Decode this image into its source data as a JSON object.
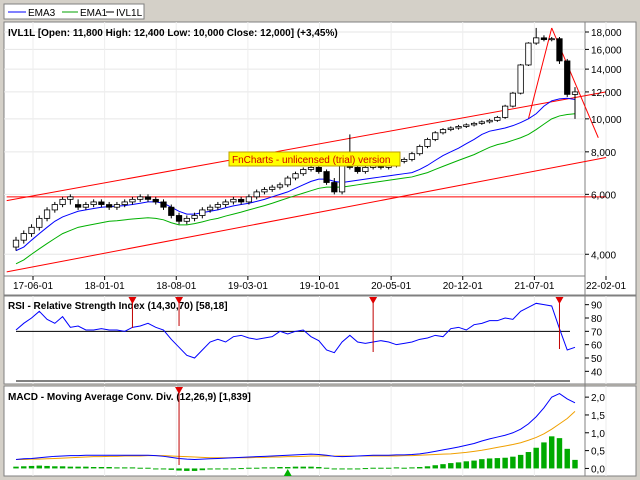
{
  "legend": [
    {
      "label": "EMA3",
      "color": "#0000ff"
    },
    {
      "label": "EMA1",
      "color": "#00a000"
    },
    {
      "label": "IVL1L",
      "color": "#000000"
    }
  ],
  "trial_note": "FnCharts - unlicensed (trial) version",
  "colors": {
    "ema3": "#0000ff",
    "ema1": "#00b000",
    "trend": "#ff0000",
    "bar_up": "#ffffff",
    "bar_down": "#000000",
    "macd_signal": "#f0a000",
    "histogram": "#00aa00",
    "note_bg": "#ffff00"
  },
  "chart_data": [
    {
      "type": "candlestick",
      "title": "IVL1L [Open: 11,800  High: 12,400  Low: 10,000  Close: 12,000] (+3,45%)",
      "y_scale": "log",
      "ylim": [
        3500,
        19000
      ],
      "y_ticks": [
        {
          "v": 4000,
          "label": "4,000"
        },
        {
          "v": 6000,
          "label": "6,000"
        },
        {
          "v": 8000,
          "label": "8,000"
        },
        {
          "v": 10000,
          "label": "10,000"
        },
        {
          "v": 12000,
          "label": "12,000"
        },
        {
          "v": 14000,
          "label": "14,000"
        },
        {
          "v": 16000,
          "label": "16,000"
        },
        {
          "v": 18000,
          "label": "18,000"
        }
      ],
      "x_tick_labels": [
        "17-06-01",
        "18-01-01",
        "18-08-01",
        "19-03-01",
        "19-10-01",
        "20-05-01",
        "20-12-01",
        "21-07-01",
        "22-02-01"
      ],
      "candles": [
        [
          4200,
          4500,
          4100,
          4400
        ],
        [
          4400,
          4700,
          4300,
          4600
        ],
        [
          4600,
          4900,
          4500,
          4800
        ],
        [
          4800,
          5200,
          4700,
          5100
        ],
        [
          5100,
          5500,
          5000,
          5400
        ],
        [
          5400,
          5700,
          5300,
          5600
        ],
        [
          5600,
          5900,
          5500,
          5800
        ],
        [
          5800,
          6000,
          5600,
          5900
        ],
        [
          5600,
          5800,
          5400,
          5500
        ],
        [
          5500,
          5700,
          5400,
          5600
        ],
        [
          5600,
          5800,
          5500,
          5700
        ],
        [
          5700,
          5800,
          5500,
          5600
        ],
        [
          5600,
          5700,
          5400,
          5500
        ],
        [
          5500,
          5700,
          5400,
          5600
        ],
        [
          5600,
          5800,
          5500,
          5700
        ],
        [
          5700,
          5900,
          5600,
          5800
        ],
        [
          5800,
          6000,
          5700,
          5900
        ],
        [
          5900,
          6000,
          5700,
          5800
        ],
        [
          5800,
          5900,
          5600,
          5700
        ],
        [
          5700,
          5800,
          5400,
          5500
        ],
        [
          5500,
          5600,
          5100,
          5200
        ],
        [
          5200,
          5300,
          4900,
          5000
        ],
        [
          5000,
          5200,
          4900,
          5100
        ],
        [
          5100,
          5300,
          5000,
          5200
        ],
        [
          5200,
          5500,
          5100,
          5400
        ],
        [
          5400,
          5600,
          5300,
          5500
        ],
        [
          5500,
          5700,
          5400,
          5600
        ],
        [
          5600,
          5800,
          5500,
          5700
        ],
        [
          5700,
          5900,
          5600,
          5800
        ],
        [
          5800,
          5900,
          5600,
          5700
        ],
        [
          5700,
          6000,
          5600,
          5900
        ],
        [
          5900,
          6200,
          5800,
          6100
        ],
        [
          6100,
          6300,
          6000,
          6200
        ],
        [
          6200,
          6400,
          6100,
          6300
        ],
        [
          6300,
          6500,
          6200,
          6400
        ],
        [
          6400,
          6800,
          6300,
          6700
        ],
        [
          6700,
          7000,
          6600,
          6900
        ],
        [
          6900,
          7200,
          6800,
          7100
        ],
        [
          7100,
          7300,
          7000,
          7200
        ],
        [
          7200,
          7300,
          6900,
          7000
        ],
        [
          7000,
          7100,
          6400,
          6500
        ],
        [
          6500,
          6700,
          6000,
          6100
        ],
        [
          6100,
          8000,
          6000,
          7300
        ],
        [
          7300,
          9000,
          7100,
          7200
        ],
        [
          7200,
          7400,
          6900,
          7000
        ],
        [
          7000,
          7300,
          6900,
          7200
        ],
        [
          7200,
          7400,
          7100,
          7300
        ],
        [
          7300,
          7400,
          7100,
          7200
        ],
        [
          7200,
          7400,
          7100,
          7300
        ],
        [
          7300,
          7600,
          7200,
          7500
        ],
        [
          7500,
          7700,
          7400,
          7600
        ],
        [
          7600,
          8000,
          7500,
          7900
        ],
        [
          7900,
          8400,
          7800,
          8300
        ],
        [
          8300,
          8800,
          8200,
          8700
        ],
        [
          8700,
          9200,
          8600,
          9100
        ],
        [
          9100,
          9400,
          9000,
          9300
        ],
        [
          9300,
          9500,
          9200,
          9400
        ],
        [
          9400,
          9600,
          9300,
          9500
        ],
        [
          9500,
          9700,
          9400,
          9600
        ],
        [
          9600,
          9800,
          9500,
          9700
        ],
        [
          9700,
          9900,
          9600,
          9800
        ],
        [
          9800,
          10000,
          9700,
          9900
        ],
        [
          9900,
          10200,
          9800,
          10100
        ],
        [
          10100,
          11000,
          10000,
          10900
        ],
        [
          10900,
          12000,
          10800,
          11900
        ],
        [
          11900,
          14500,
          11800,
          14400
        ],
        [
          14400,
          16800,
          14300,
          16700
        ],
        [
          16700,
          18500,
          16500,
          17300
        ],
        [
          17300,
          17600,
          16900,
          17100
        ],
        [
          17100,
          17400,
          16900,
          17200
        ],
        [
          17200,
          17400,
          14500,
          14800
        ],
        [
          14800,
          15000,
          11600,
          11800
        ],
        [
          11800,
          12400,
          10000,
          12000
        ]
      ],
      "ema3": [
        4100,
        4200,
        4400,
        4600,
        4800,
        5000,
        5150,
        5250,
        5350,
        5400,
        5450,
        5500,
        5520,
        5540,
        5560,
        5600,
        5650,
        5700,
        5700,
        5650,
        5500,
        5350,
        5250,
        5250,
        5300,
        5350,
        5400,
        5480,
        5550,
        5600,
        5650,
        5720,
        5800,
        5900,
        6000,
        6100,
        6250,
        6400,
        6550,
        6650,
        6650,
        6550,
        6500,
        6550,
        6600,
        6650,
        6700,
        6750,
        6800,
        6850,
        6900,
        6950,
        7100,
        7300,
        7550,
        7800,
        8000,
        8200,
        8450,
        8700,
        9000,
        9200,
        9300,
        9400,
        9550,
        9750,
        10000,
        10350,
        10900,
        11300,
        11450,
        11500,
        11400
      ],
      "ema1": [
        3750,
        3850,
        4000,
        4150,
        4300,
        4450,
        4600,
        4700,
        4800,
        4850,
        4900,
        4950,
        5000,
        5020,
        5050,
        5080,
        5100,
        5120,
        5100,
        5050,
        4950,
        4880,
        4880,
        4920,
        4980,
        5050,
        5100,
        5180,
        5250,
        5320,
        5400,
        5480,
        5560,
        5650,
        5750,
        5850,
        5950,
        6050,
        6150,
        6250,
        6300,
        6300,
        6300,
        6350,
        6400,
        6450,
        6500,
        6550,
        6600,
        6650,
        6700,
        6750,
        6850,
        6950,
        7100,
        7250,
        7400,
        7550,
        7700,
        7850,
        8050,
        8250,
        8400,
        8500,
        8650,
        8800,
        9000,
        9300,
        9650,
        10000,
        10200,
        10300,
        10350
      ]
    },
    {
      "type": "line",
      "title": "RSI - Relative Strength Index (14,30,70) [58,18]",
      "ylim": [
        32,
        95
      ],
      "y_ticks": [
        40,
        50,
        60,
        70,
        80,
        90
      ],
      "reference_lines": [
        30,
        70
      ],
      "series": [
        {
          "values": [
            71,
            76,
            80,
            85,
            79,
            76,
            81,
            73,
            74,
            71,
            71,
            72,
            71,
            71,
            70,
            73,
            74,
            76,
            73,
            71,
            64,
            58,
            52,
            50,
            56,
            62,
            64,
            62,
            66,
            67,
            65,
            64,
            65,
            66,
            70,
            68,
            70,
            71,
            66,
            63,
            56,
            54,
            62,
            67,
            62,
            61,
            62,
            63,
            62,
            60,
            61,
            62,
            64,
            65,
            67,
            66,
            72,
            73,
            71,
            75,
            76,
            78,
            78,
            80,
            79,
            85,
            88,
            91,
            90,
            89,
            72,
            56,
            58
          ]
        }
      ]
    },
    {
      "type": "line_and_bar",
      "title": "MACD - Moving Average Conv. Div. (12,26,9) [1,839]",
      "ylim": [
        -0.1,
        2.2
      ],
      "y_ticks": [
        {
          "v": 0,
          "label": "0,0"
        },
        {
          "v": 0.5,
          "label": "0,5"
        },
        {
          "v": 1,
          "label": "1,0"
        },
        {
          "v": 1.5,
          "label": "1,5"
        },
        {
          "v": 2,
          "label": "2,0"
        }
      ],
      "series": [
        {
          "values": [
            0.25,
            0.27,
            0.28,
            0.3,
            0.32,
            0.34,
            0.35,
            0.36,
            0.36,
            0.37,
            0.37,
            0.37,
            0.37,
            0.37,
            0.37,
            0.37,
            0.37,
            0.37,
            0.36,
            0.34,
            0.31,
            0.28,
            0.26,
            0.25,
            0.26,
            0.27,
            0.28,
            0.29,
            0.3,
            0.31,
            0.32,
            0.33,
            0.34,
            0.35,
            0.36,
            0.37,
            0.38,
            0.39,
            0.4,
            0.39,
            0.37,
            0.34,
            0.33,
            0.34,
            0.35,
            0.36,
            0.37,
            0.37,
            0.37,
            0.38,
            0.38,
            0.39,
            0.41,
            0.44,
            0.48,
            0.52,
            0.56,
            0.6,
            0.65,
            0.7,
            0.77,
            0.83,
            0.88,
            0.93,
            1.0,
            1.1,
            1.25,
            1.45,
            1.7,
            2.0,
            2.1,
            1.95,
            1.84
          ]
        },
        {
          "values": [
            0.25,
            0.25,
            0.26,
            0.26,
            0.27,
            0.28,
            0.29,
            0.3,
            0.31,
            0.32,
            0.33,
            0.33,
            0.34,
            0.34,
            0.35,
            0.35,
            0.35,
            0.36,
            0.36,
            0.36,
            0.35,
            0.34,
            0.33,
            0.32,
            0.31,
            0.3,
            0.3,
            0.3,
            0.3,
            0.3,
            0.3,
            0.31,
            0.31,
            0.32,
            0.32,
            0.33,
            0.33,
            0.34,
            0.35,
            0.35,
            0.35,
            0.35,
            0.35,
            0.35,
            0.35,
            0.35,
            0.35,
            0.35,
            0.35,
            0.35,
            0.36,
            0.36,
            0.37,
            0.38,
            0.39,
            0.4,
            0.41,
            0.43,
            0.45,
            0.48,
            0.51,
            0.55,
            0.59,
            0.63,
            0.67,
            0.72,
            0.79,
            0.87,
            0.97,
            1.1,
            1.25,
            1.4,
            1.6
          ]
        }
      ],
      "histogram": [
        0.05,
        0.06,
        0.07,
        0.08,
        0.07,
        0.06,
        0.06,
        0.05,
        0.05,
        0.05,
        0.04,
        0.04,
        0.04,
        0.03,
        0.03,
        0.03,
        0.02,
        0.02,
        0.0,
        -0.02,
        -0.04,
        -0.06,
        -0.07,
        -0.07,
        -0.05,
        -0.03,
        -0.02,
        -0.01,
        0.0,
        0.01,
        0.02,
        0.02,
        0.03,
        0.03,
        0.04,
        0.04,
        0.05,
        0.05,
        0.05,
        0.04,
        0.02,
        -0.01,
        -0.02,
        -0.01,
        0.0,
        0.01,
        0.02,
        0.02,
        0.02,
        0.03,
        0.02,
        0.03,
        0.04,
        0.06,
        0.09,
        0.12,
        0.15,
        0.17,
        0.2,
        0.22,
        0.26,
        0.28,
        0.29,
        0.3,
        0.33,
        0.38,
        0.46,
        0.58,
        0.73,
        0.9,
        0.85,
        0.55,
        0.24
      ]
    }
  ]
}
